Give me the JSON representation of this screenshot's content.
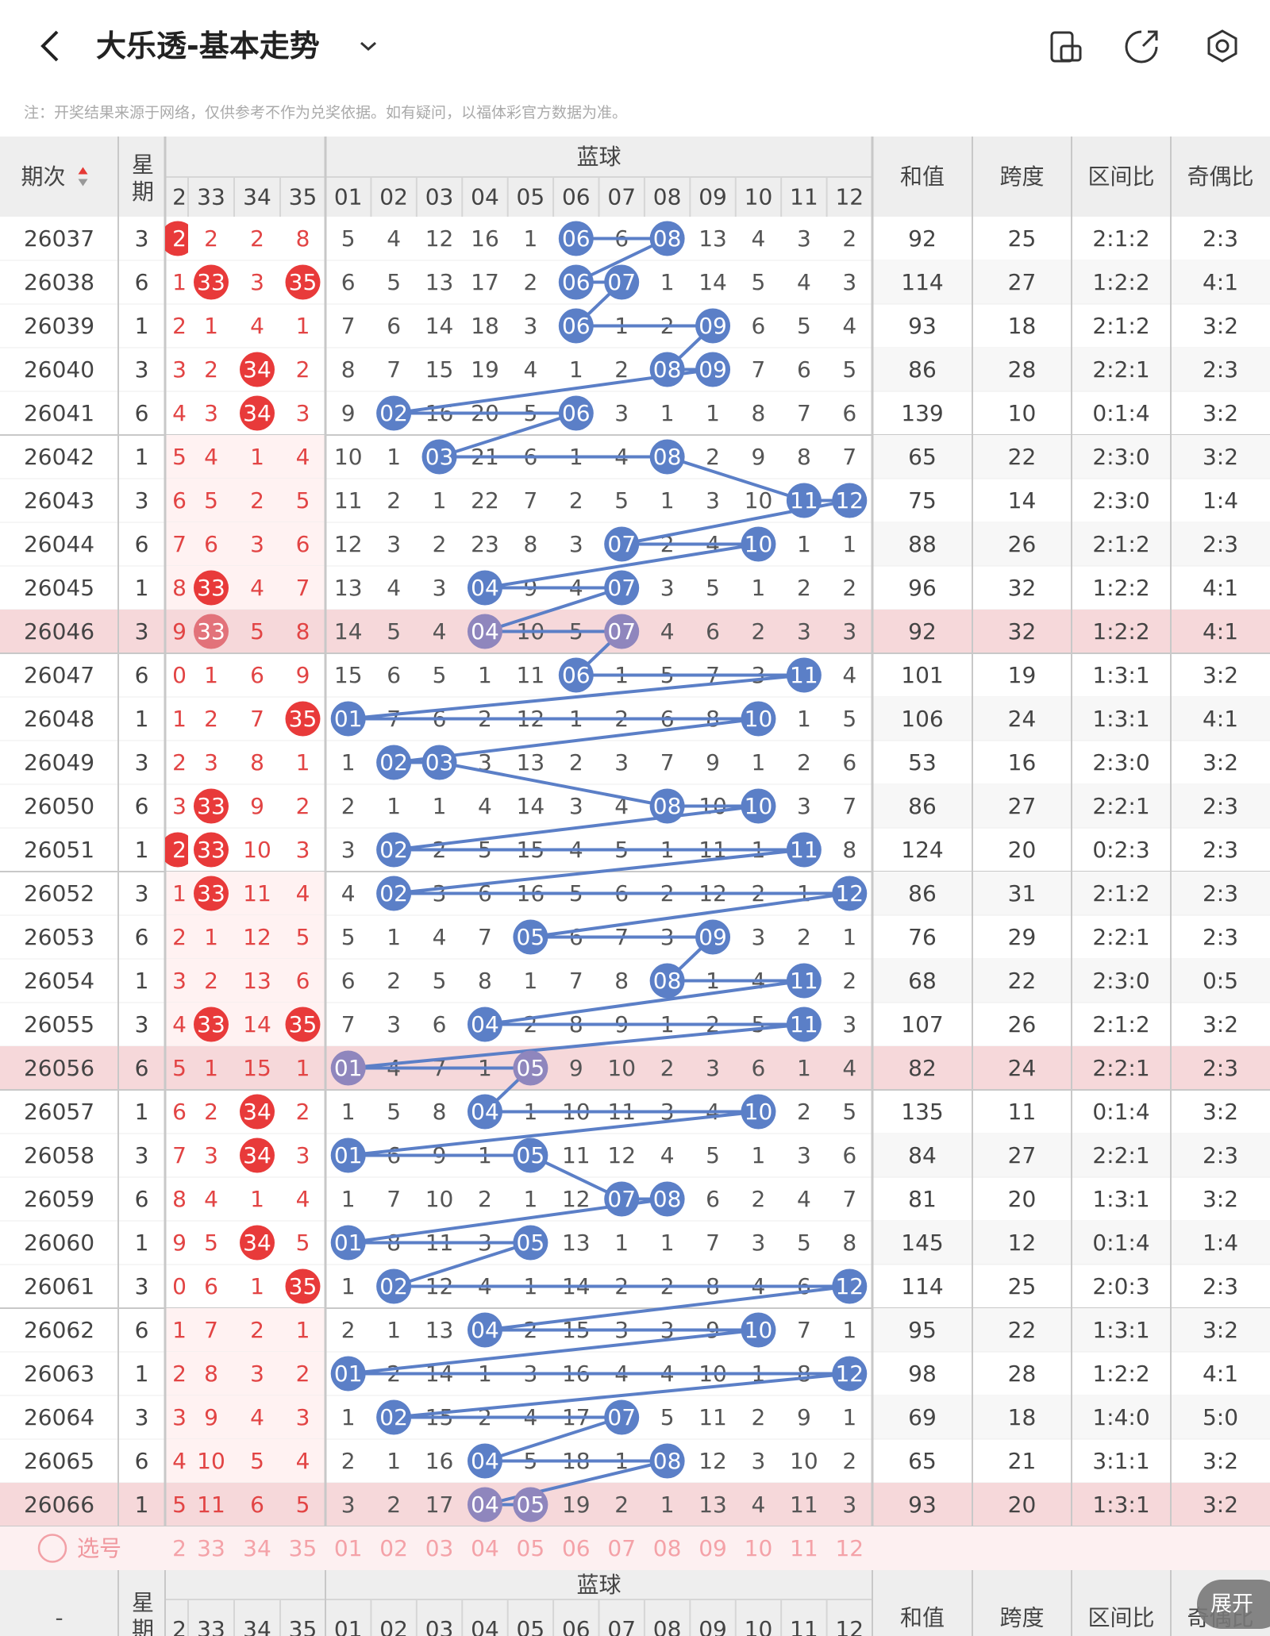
{
  "header": {
    "title": "大乐透-基本走势"
  },
  "notice": "注：开奖结果来源于网络，仅供参考不作为兑奖依据。如有疑问，以福体彩官方数据为准。",
  "table": {
    "columns": {
      "period": "期次",
      "week": "星期",
      "blue_group": "蓝球",
      "red": [
        "2",
        "33",
        "34",
        "35"
      ],
      "blue": [
        "01",
        "02",
        "03",
        "04",
        "05",
        "06",
        "07",
        "08",
        "09",
        "10",
        "11",
        "12"
      ],
      "sum": "和值",
      "span": "跨度",
      "zone": "区间比",
      "odd_even": "奇偶比"
    },
    "rows": [
      {
        "period": 26037,
        "week": 3,
        "red": [
          "2",
          2,
          2,
          8
        ],
        "blue": [
          5,
          4,
          12,
          16,
          1,
          "06",
          6,
          "08",
          13,
          4,
          3,
          2
        ],
        "sum": 92,
        "span": 25,
        "zone": "2:1:2",
        "odd_even": "2:3"
      },
      {
        "period": 26038,
        "week": 6,
        "red": [
          1,
          "33",
          3,
          "35"
        ],
        "blue": [
          6,
          5,
          13,
          17,
          2,
          "06",
          "07",
          1,
          14,
          5,
          4,
          3
        ],
        "sum": 114,
        "span": 27,
        "zone": "1:2:2",
        "odd_even": "4:1"
      },
      {
        "period": 26039,
        "week": 1,
        "red": [
          2,
          1,
          4,
          1
        ],
        "blue": [
          7,
          6,
          14,
          18,
          3,
          "06",
          1,
          2,
          "09",
          6,
          5,
          4
        ],
        "sum": 93,
        "span": 18,
        "zone": "2:1:2",
        "odd_even": "3:2"
      },
      {
        "period": 26040,
        "week": 3,
        "red": [
          3,
          2,
          "34",
          2
        ],
        "blue": [
          8,
          7,
          15,
          19,
          4,
          1,
          2,
          "08",
          "09",
          7,
          6,
          5
        ],
        "sum": 86,
        "span": 28,
        "zone": "2:2:1",
        "odd_even": "2:3"
      },
      {
        "period": 26041,
        "week": 6,
        "red": [
          4,
          3,
          "34",
          3
        ],
        "blue": [
          9,
          "02",
          16,
          20,
          5,
          "06",
          3,
          1,
          1,
          8,
          7,
          6
        ],
        "sum": 139,
        "span": 10,
        "zone": "0:1:4",
        "odd_even": "3:2"
      },
      {
        "period": 26042,
        "week": 1,
        "red": [
          5,
          4,
          1,
          4
        ],
        "blue": [
          10,
          1,
          "03",
          21,
          6,
          1,
          4,
          "08",
          2,
          9,
          8,
          7
        ],
        "sum": 65,
        "span": 22,
        "zone": "2:3:0",
        "odd_even": "3:2"
      },
      {
        "period": 26043,
        "week": 3,
        "red": [
          6,
          5,
          2,
          5
        ],
        "blue": [
          11,
          2,
          1,
          22,
          7,
          2,
          5,
          1,
          3,
          10,
          "11",
          "12"
        ],
        "sum": 75,
        "span": 14,
        "zone": "2:3:0",
        "odd_even": "1:4"
      },
      {
        "period": 26044,
        "week": 6,
        "red": [
          7,
          6,
          3,
          6
        ],
        "blue": [
          12,
          3,
          2,
          23,
          8,
          3,
          "07",
          2,
          4,
          "10",
          1,
          1
        ],
        "sum": 88,
        "span": 26,
        "zone": "2:1:2",
        "odd_even": "2:3"
      },
      {
        "period": 26045,
        "week": 1,
        "red": [
          8,
          "33",
          4,
          7
        ],
        "blue": [
          13,
          4,
          3,
          "04",
          9,
          4,
          "07",
          3,
          5,
          1,
          2,
          2
        ],
        "sum": 96,
        "span": 32,
        "zone": "1:2:2",
        "odd_even": "4:1"
      },
      {
        "period": 26046,
        "week": 3,
        "red": [
          9,
          "33",
          5,
          8
        ],
        "blue": [
          14,
          5,
          4,
          "04",
          10,
          5,
          "07",
          4,
          6,
          2,
          3,
          3
        ],
        "sum": 92,
        "span": 32,
        "zone": "1:2:2",
        "odd_even": "4:1"
      },
      {
        "period": 26047,
        "week": 6,
        "red": [
          0,
          1,
          6,
          9
        ],
        "blue": [
          15,
          6,
          5,
          1,
          11,
          "06",
          1,
          5,
          7,
          3,
          "11",
          4
        ],
        "sum": 101,
        "span": 19,
        "zone": "1:3:1",
        "odd_even": "3:2"
      },
      {
        "period": 26048,
        "week": 1,
        "red": [
          1,
          2,
          7,
          "35"
        ],
        "blue": [
          "01",
          7,
          6,
          2,
          12,
          1,
          2,
          6,
          8,
          "10",
          1,
          5
        ],
        "sum": 106,
        "span": 24,
        "zone": "1:3:1",
        "odd_even": "4:1"
      },
      {
        "period": 26049,
        "week": 3,
        "red": [
          2,
          3,
          8,
          1
        ],
        "blue": [
          1,
          "02",
          "03",
          3,
          13,
          2,
          3,
          7,
          9,
          1,
          2,
          6
        ],
        "sum": 53,
        "span": 16,
        "zone": "2:3:0",
        "odd_even": "3:2"
      },
      {
        "period": 26050,
        "week": 6,
        "red": [
          3,
          "33",
          9,
          2
        ],
        "blue": [
          2,
          1,
          1,
          4,
          14,
          3,
          4,
          "08",
          10,
          "10",
          3,
          7
        ],
        "sum": 86,
        "span": 27,
        "zone": "2:2:1",
        "odd_even": "2:3"
      },
      {
        "period": 26051,
        "week": 1,
        "red": [
          "2",
          "33",
          10,
          3
        ],
        "blue": [
          3,
          "02",
          2,
          5,
          15,
          4,
          5,
          1,
          11,
          1,
          "11",
          8
        ],
        "sum": 124,
        "span": 20,
        "zone": "0:2:3",
        "odd_even": "2:3"
      },
      {
        "period": 26052,
        "week": 3,
        "red": [
          1,
          "33",
          11,
          4
        ],
        "blue": [
          4,
          "02",
          3,
          6,
          16,
          5,
          6,
          2,
          12,
          2,
          1,
          "12"
        ],
        "sum": 86,
        "span": 31,
        "zone": "2:1:2",
        "odd_even": "2:3"
      },
      {
        "period": 26053,
        "week": 6,
        "red": [
          2,
          1,
          12,
          5
        ],
        "blue": [
          5,
          1,
          4,
          7,
          "05",
          6,
          7,
          3,
          "09",
          3,
          2,
          1
        ],
        "sum": 76,
        "span": 29,
        "zone": "2:2:1",
        "odd_even": "2:3"
      },
      {
        "period": 26054,
        "week": 1,
        "red": [
          3,
          2,
          13,
          6
        ],
        "blue": [
          6,
          2,
          5,
          8,
          1,
          7,
          8,
          "08",
          1,
          4,
          "11",
          2
        ],
        "sum": 68,
        "span": 22,
        "zone": "2:3:0",
        "odd_even": "0:5"
      },
      {
        "period": 26055,
        "week": 3,
        "red": [
          4,
          "33",
          14,
          "35"
        ],
        "blue": [
          7,
          3,
          6,
          "04",
          2,
          8,
          9,
          1,
          2,
          5,
          "11",
          3
        ],
        "sum": 107,
        "span": 26,
        "zone": "2:1:2",
        "odd_even": "3:2"
      },
      {
        "period": 26056,
        "week": 6,
        "red": [
          5,
          1,
          15,
          1
        ],
        "blue": [
          "01",
          4,
          7,
          1,
          "05",
          9,
          10,
          2,
          3,
          6,
          1,
          4
        ],
        "sum": 82,
        "span": 24,
        "zone": "2:2:1",
        "odd_even": "2:3"
      },
      {
        "period": 26057,
        "week": 1,
        "red": [
          6,
          2,
          "34",
          2
        ],
        "blue": [
          1,
          5,
          8,
          "04",
          1,
          10,
          11,
          3,
          4,
          "10",
          2,
          5
        ],
        "sum": 135,
        "span": 11,
        "zone": "0:1:4",
        "odd_even": "3:2"
      },
      {
        "period": 26058,
        "week": 3,
        "red": [
          7,
          3,
          "34",
          3
        ],
        "blue": [
          "01",
          6,
          9,
          1,
          "05",
          11,
          12,
          4,
          5,
          1,
          3,
          6
        ],
        "sum": 84,
        "span": 27,
        "zone": "2:2:1",
        "odd_even": "2:3"
      },
      {
        "period": 26059,
        "week": 6,
        "red": [
          8,
          4,
          1,
          4
        ],
        "blue": [
          1,
          7,
          10,
          2,
          1,
          12,
          "07",
          "08",
          6,
          2,
          4,
          7
        ],
        "sum": 81,
        "span": 20,
        "zone": "1:3:1",
        "odd_even": "3:2"
      },
      {
        "period": 26060,
        "week": 1,
        "red": [
          9,
          5,
          "34",
          5
        ],
        "blue": [
          "01",
          8,
          11,
          3,
          "05",
          13,
          1,
          1,
          7,
          3,
          5,
          8
        ],
        "sum": 145,
        "span": 12,
        "zone": "0:1:4",
        "odd_even": "1:4"
      },
      {
        "period": 26061,
        "week": 3,
        "red": [
          0,
          6,
          1,
          "35"
        ],
        "blue": [
          1,
          "02",
          12,
          4,
          1,
          14,
          2,
          2,
          8,
          4,
          6,
          "12"
        ],
        "sum": 114,
        "span": 25,
        "zone": "2:0:3",
        "odd_even": "2:3"
      },
      {
        "period": 26062,
        "week": 6,
        "red": [
          1,
          7,
          2,
          1
        ],
        "blue": [
          2,
          1,
          13,
          "04",
          2,
          15,
          3,
          3,
          9,
          "10",
          7,
          1
        ],
        "sum": 95,
        "span": 22,
        "zone": "1:3:1",
        "odd_even": "3:2"
      },
      {
        "period": 26063,
        "week": 1,
        "red": [
          2,
          8,
          3,
          2
        ],
        "blue": [
          "01",
          2,
          14,
          1,
          3,
          16,
          4,
          4,
          10,
          1,
          8,
          "12"
        ],
        "sum": 98,
        "span": 28,
        "zone": "1:2:2",
        "odd_even": "4:1"
      },
      {
        "period": 26064,
        "week": 3,
        "red": [
          3,
          9,
          4,
          3
        ],
        "blue": [
          1,
          "02",
          15,
          2,
          4,
          17,
          "07",
          5,
          11,
          2,
          9,
          1
        ],
        "sum": 69,
        "span": 18,
        "zone": "1:4:0",
        "odd_even": "5:0"
      },
      {
        "period": 26065,
        "week": 6,
        "red": [
          4,
          10,
          5,
          4
        ],
        "blue": [
          2,
          1,
          16,
          "04",
          5,
          18,
          1,
          "08",
          12,
          3,
          10,
          2
        ],
        "sum": 65,
        "span": 21,
        "zone": "3:1:1",
        "odd_even": "3:2"
      },
      {
        "period": 26066,
        "week": 1,
        "red": [
          5,
          11,
          6,
          5
        ],
        "blue": [
          3,
          2,
          17,
          "04",
          "05",
          19,
          2,
          1,
          13,
          4,
          11,
          3
        ],
        "sum": 93,
        "span": 20,
        "zone": "1:3:1",
        "odd_even": "3:2"
      }
    ]
  },
  "picker": {
    "label": "选号"
  },
  "footer_header": {
    "period": "-"
  },
  "expand": "展开"
}
